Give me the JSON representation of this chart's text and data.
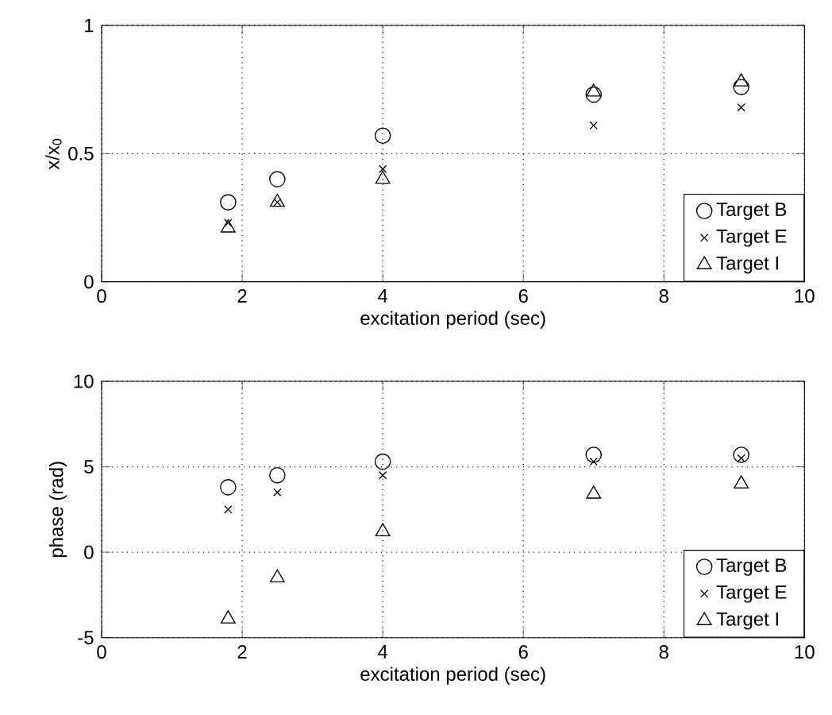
{
  "chart_data": [
    {
      "type": "scatter",
      "xlabel": "excitation period (sec)",
      "ylabel": "x/x$_{0}$",
      "x": [
        1.8,
        2.5,
        4,
        7,
        9.1
      ],
      "xlim": [
        0,
        10
      ],
      "ylim": [
        0,
        1
      ],
      "xticks": [
        0,
        2,
        4,
        6,
        8,
        10
      ],
      "yticks": [
        0,
        0.5,
        1
      ],
      "grid": true,
      "legend": "bottom right",
      "series": [
        {
          "name": "Target B",
          "color": "#000000",
          "marker": "circle",
          "values": [
            0.31,
            0.4,
            0.57,
            0.73,
            0.76
          ]
        },
        {
          "name": "Target E",
          "color": "#000000",
          "marker": "cross",
          "values": [
            0.23,
            0.31,
            0.44,
            0.61,
            0.68
          ]
        },
        {
          "name": "Target I",
          "color": "#000000",
          "marker": "triangle",
          "values": [
            0.21,
            0.31,
            0.4,
            0.74,
            0.78
          ]
        }
      ]
    },
    {
      "type": "scatter",
      "xlabel": "excitation period (sec)",
      "ylabel": "phase (rad)",
      "x": [
        1.8,
        2.5,
        4,
        7,
        9.1
      ],
      "xlim": [
        0,
        10
      ],
      "ylim": [
        -5,
        10
      ],
      "xticks": [
        0,
        2,
        4,
        6,
        8,
        10
      ],
      "yticks": [
        -5,
        0,
        5,
        10
      ],
      "grid": true,
      "legend": "bottom right",
      "series": [
        {
          "name": "Target B",
          "color": "#000000",
          "marker": "circle",
          "values": [
            3.8,
            4.5,
            5.3,
            5.7,
            5.7
          ]
        },
        {
          "name": "Target E",
          "color": "#000000",
          "marker": "cross",
          "values": [
            2.5,
            3.5,
            4.5,
            5.3,
            5.5
          ]
        },
        {
          "name": "Target I",
          "color": "#000000",
          "marker": "triangle",
          "values": [
            -3.9,
            -1.5,
            1.2,
            3.4,
            4.0
          ]
        }
      ]
    }
  ]
}
